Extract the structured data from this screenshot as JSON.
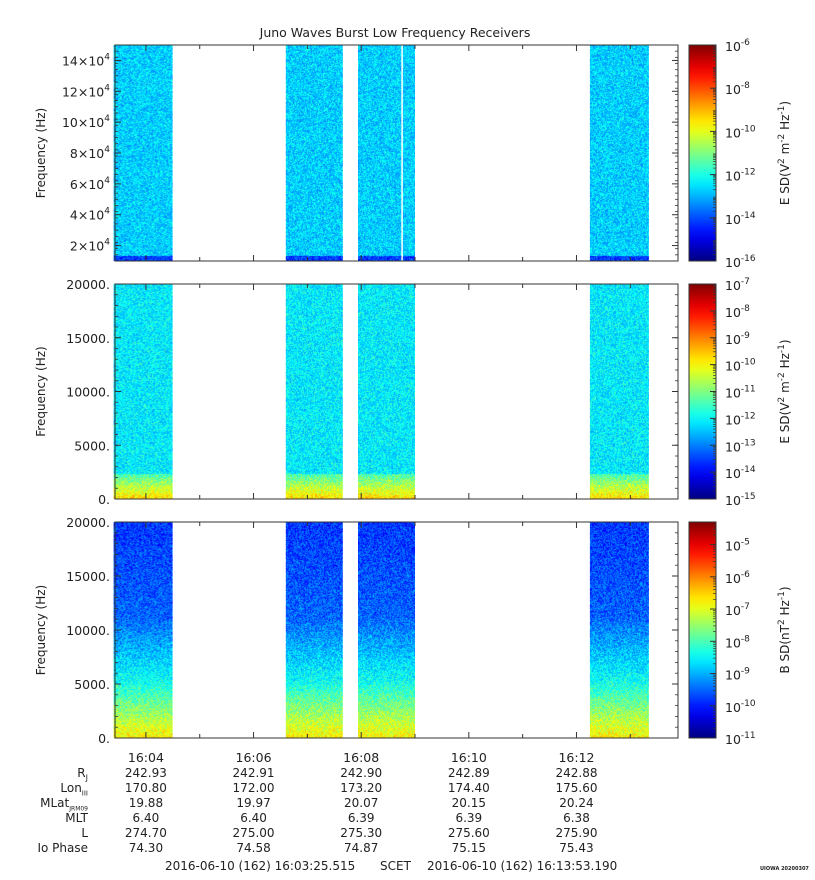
{
  "chart_data": {
    "type": "heatmap",
    "title": "Juno Waves Burst Low Frequency Receivers",
    "time_axis": {
      "range": [
        "16:03:25.515",
        "16:13:53.190"
      ],
      "ticks": [
        "16:04",
        "16:06",
        "16:08",
        "16:10",
        "16:12"
      ],
      "tick_minutes": [
        4,
        6,
        8,
        10,
        12
      ],
      "minor_tick_minutes": [
        5,
        7,
        9,
        11,
        13
      ]
    },
    "data_intervals_minutes": [
      [
        3.4,
        4.5
      ],
      [
        6.6,
        7.66
      ],
      [
        7.94,
        9.0
      ],
      [
        12.25,
        13.34
      ]
    ],
    "panels": [
      {
        "ylabel": "Frequency (Hz)",
        "ylim": [
          10000,
          150000
        ],
        "yticks": [
          20000,
          40000,
          60000,
          80000,
          100000,
          120000,
          140000
        ],
        "ytick_labels": [
          {
            "m": "2×10",
            "e": "4"
          },
          {
            "m": "4×10",
            "e": "4"
          },
          {
            "m": "6×10",
            "e": "4"
          },
          {
            "m": "8×10",
            "e": "4"
          },
          {
            "m": "10×10",
            "e": "4"
          },
          {
            "m": "12×10",
            "e": "4"
          },
          {
            "m": "14×10",
            "e": "4"
          }
        ],
        "colorbar_label": {
          "a": "E SD(V",
          "b": "2",
          "c": " m",
          "d": "-2",
          "e": " Hz",
          "f": "-1",
          "g": ")"
        },
        "colorbar_log_range": [
          -16,
          -6
        ],
        "colorbar_ticks": [
          -16,
          -14,
          -12,
          -10,
          -8,
          -6
        ],
        "style": "uniform",
        "gap_line_minute": 8.76
      },
      {
        "ylabel": "Frequency (Hz)",
        "ylim": [
          0,
          20000
        ],
        "yticks": [
          0,
          5000,
          10000,
          15000,
          20000
        ],
        "ytick_labels": [
          "0.",
          "5000.",
          "10000.",
          "15000.",
          "20000."
        ],
        "colorbar_label": {
          "a": "E SD(V",
          "b": "2",
          "c": " m",
          "d": "-2",
          "e": " Hz",
          "f": "-1",
          "g": ")"
        },
        "colorbar_log_range": [
          -15,
          -7
        ],
        "colorbar_ticks": [
          -15,
          -14,
          -13,
          -12,
          -11,
          -10,
          -9,
          -8,
          -7
        ],
        "style": "lowboost"
      },
      {
        "ylabel": "Frequency (Hz)",
        "ylim": [
          0,
          20000
        ],
        "yticks": [
          0,
          5000,
          10000,
          15000,
          20000
        ],
        "ytick_labels": [
          "0.",
          "5000.",
          "10000.",
          "15000.",
          "20000."
        ],
        "colorbar_label": {
          "a": "B SD(nT",
          "b": "2",
          "c": " Hz",
          "d": "-1",
          "e": ")",
          "f": "",
          "g": ""
        },
        "colorbar_log_range": [
          -11,
          -4.3
        ],
        "colorbar_ticks": [
          -11,
          -10,
          -9,
          -8,
          -7,
          -6,
          -5
        ],
        "style": "gradient"
      }
    ],
    "ephemeris": {
      "labels": [
        {
          "main": "R",
          "sub": "J"
        },
        {
          "main": "Lon",
          "sub": "III"
        },
        {
          "main": "MLat",
          "sub": "JRM09"
        },
        {
          "main": "MLT",
          "sub": ""
        },
        {
          "main": "L",
          "sub": ""
        },
        {
          "main": "Io Phase",
          "sub": ""
        }
      ],
      "rows": [
        [
          "242.93",
          "242.91",
          "242.90",
          "242.89",
          "242.88"
        ],
        [
          "170.80",
          "172.00",
          "173.20",
          "174.40",
          "175.60"
        ],
        [
          "19.88",
          "19.97",
          "20.07",
          "20.15",
          "20.24"
        ],
        [
          "6.40",
          "6.40",
          "6.39",
          "6.39",
          "6.38"
        ],
        [
          "274.70",
          "275.00",
          "275.30",
          "275.60",
          "275.90"
        ],
        [
          "74.30",
          "74.58",
          "74.87",
          "75.15",
          "75.43"
        ]
      ]
    },
    "footer": {
      "start": "2016-06-10 (162) 16:03:25.515",
      "scet": "SCET",
      "end": "2016-06-10 (162) 16:13:53.190",
      "stamp": "UIOWA 20200307"
    }
  }
}
